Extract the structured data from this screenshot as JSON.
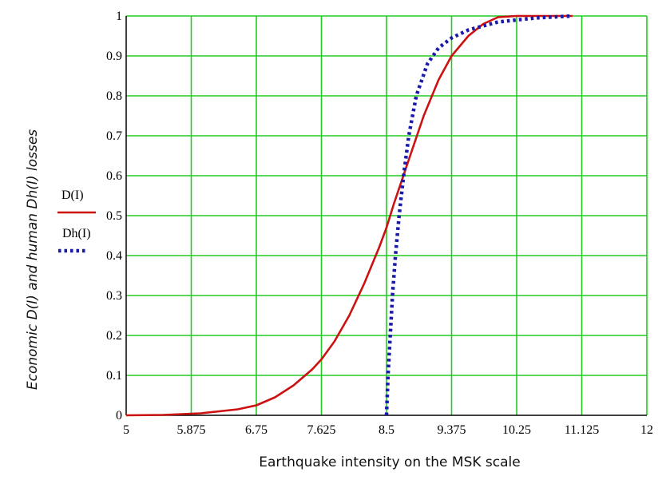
{
  "chart_data": {
    "type": "line",
    "xlabel": "Earthquake intensity on the MSK scale",
    "ylabel": "Economic D(I) and human Dh(I) losses",
    "xlim": [
      5,
      12
    ],
    "ylim": [
      0,
      1
    ],
    "x_ticks": [
      "5",
      "5.875",
      "6.75",
      "7.625",
      "8.5",
      "9.375",
      "10.25",
      "11.125",
      "12"
    ],
    "y_ticks": [
      "0",
      "0.1",
      "0.2",
      "0.3",
      "0.4",
      "0.5",
      "0.6",
      "0.7",
      "0.8",
      "0.9",
      "1"
    ],
    "grid": true,
    "grid_color": "#22cc22",
    "legend_placement": "left-middle",
    "series": [
      {
        "name": "D(I)",
        "color": "#cc1111",
        "style": "solid",
        "points": [
          [
            5.0,
            0.0
          ],
          [
            5.5,
            0.001
          ],
          [
            6.0,
            0.005
          ],
          [
            6.5,
            0.015
          ],
          [
            6.75,
            0.025
          ],
          [
            7.0,
            0.045
          ],
          [
            7.25,
            0.075
          ],
          [
            7.5,
            0.115
          ],
          [
            7.625,
            0.14
          ],
          [
            7.8,
            0.185
          ],
          [
            8.0,
            0.25
          ],
          [
            8.2,
            0.33
          ],
          [
            8.4,
            0.42
          ],
          [
            8.5,
            0.47
          ],
          [
            8.6,
            0.53
          ],
          [
            8.8,
            0.64
          ],
          [
            9.0,
            0.75
          ],
          [
            9.2,
            0.84
          ],
          [
            9.375,
            0.9
          ],
          [
            9.6,
            0.95
          ],
          [
            9.8,
            0.98
          ],
          [
            10.0,
            0.997
          ],
          [
            10.25,
            1.0
          ],
          [
            11.0,
            1.0
          ]
        ]
      },
      {
        "name": "Dh(I)",
        "color": "#1a1aaa",
        "style": "dotted",
        "points": [
          [
            8.5,
            0.0
          ],
          [
            8.52,
            0.1
          ],
          [
            8.55,
            0.2
          ],
          [
            8.58,
            0.3
          ],
          [
            8.62,
            0.4
          ],
          [
            8.67,
            0.5
          ],
          [
            8.73,
            0.6
          ],
          [
            8.8,
            0.7
          ],
          [
            8.9,
            0.8
          ],
          [
            9.05,
            0.88
          ],
          [
            9.2,
            0.92
          ],
          [
            9.375,
            0.945
          ],
          [
            9.6,
            0.965
          ],
          [
            9.8,
            0.975
          ],
          [
            10.0,
            0.985
          ],
          [
            10.25,
            0.99
          ],
          [
            10.5,
            0.995
          ],
          [
            11.0,
            1.0
          ]
        ]
      }
    ]
  }
}
